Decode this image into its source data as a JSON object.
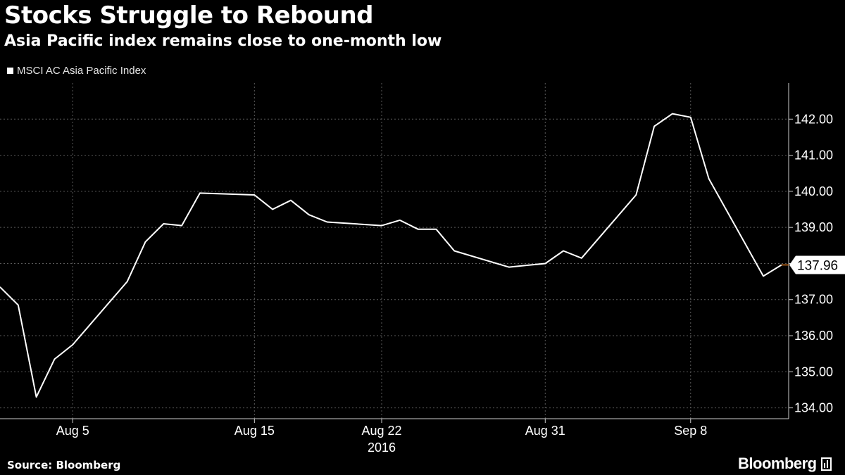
{
  "header": {
    "title": "Stocks Struggle to Rebound",
    "subtitle": "Asia Pacific index remains close to one-month low"
  },
  "footer": {
    "source": "Source: Bloomberg",
    "brand": "Bloomberg",
    "brand_icon": "bloomberg-terminal-icon"
  },
  "colors": {
    "background": "#000000",
    "line": "#ffffff",
    "grid": "#5a5a5a",
    "last_value_marker": "#e07a1f"
  },
  "chart_data": {
    "type": "line",
    "title": "Stocks Struggle to Rebound",
    "subtitle": "Asia Pacific index remains close to one-month low",
    "xlabel": "2016",
    "ylabel": "",
    "ylim": [
      133.7,
      143.0
    ],
    "yticks": [
      134.0,
      135.0,
      136.0,
      137.0,
      138.0,
      139.0,
      140.0,
      141.0,
      142.0
    ],
    "ytick_labels": [
      "134.00",
      "135.00",
      "136.00",
      "137.00",
      "",
      "139.00",
      "140.00",
      "141.00",
      "142.00"
    ],
    "xticks": [
      {
        "date": "2016-08-05",
        "label": "Aug 5"
      },
      {
        "date": "2016-08-15",
        "label": "Aug 15"
      },
      {
        "date": "2016-08-22",
        "label": "Aug 22"
      },
      {
        "date": "2016-08-31",
        "label": "Aug 31"
      },
      {
        "date": "2016-09-08",
        "label": "Sep 8"
      }
    ],
    "xlim": [
      "2016-08-01",
      "2016-09-12"
    ],
    "x_group_label": "2016",
    "grid": true,
    "legend_position": "top-left",
    "last_value": 137.96,
    "last_value_label": "137.96",
    "series": [
      {
        "name": "MSCI AC Asia Pacific Index",
        "color": "#ffffff",
        "points": [
          {
            "x": "2016-08-01",
            "y": 137.35
          },
          {
            "x": "2016-08-02",
            "y": 136.85
          },
          {
            "x": "2016-08-03",
            "y": 134.3
          },
          {
            "x": "2016-08-04",
            "y": 135.35
          },
          {
            "x": "2016-08-05",
            "y": 135.75
          },
          {
            "x": "2016-08-08",
            "y": 137.5
          },
          {
            "x": "2016-08-09",
            "y": 138.6
          },
          {
            "x": "2016-08-10",
            "y": 139.1
          },
          {
            "x": "2016-08-11",
            "y": 139.05
          },
          {
            "x": "2016-08-12",
            "y": 139.95
          },
          {
            "x": "2016-08-15",
            "y": 139.9
          },
          {
            "x": "2016-08-16",
            "y": 139.5
          },
          {
            "x": "2016-08-17",
            "y": 139.75
          },
          {
            "x": "2016-08-18",
            "y": 139.35
          },
          {
            "x": "2016-08-19",
            "y": 139.15
          },
          {
            "x": "2016-08-22",
            "y": 139.05
          },
          {
            "x": "2016-08-23",
            "y": 139.2
          },
          {
            "x": "2016-08-24",
            "y": 138.95
          },
          {
            "x": "2016-08-25",
            "y": 138.95
          },
          {
            "x": "2016-08-26",
            "y": 138.35
          },
          {
            "x": "2016-08-29",
            "y": 137.9
          },
          {
            "x": "2016-08-30",
            "y": 137.95
          },
          {
            "x": "2016-08-31",
            "y": 138.0
          },
          {
            "x": "2016-09-01",
            "y": 138.35
          },
          {
            "x": "2016-09-02",
            "y": 138.15
          },
          {
            "x": "2016-09-05",
            "y": 139.9
          },
          {
            "x": "2016-09-06",
            "y": 141.8
          },
          {
            "x": "2016-09-07",
            "y": 142.15
          },
          {
            "x": "2016-09-08",
            "y": 142.05
          },
          {
            "x": "2016-09-09",
            "y": 140.35
          },
          {
            "x": "2016-09-12",
            "y": 137.65
          },
          {
            "x": "2016-09-13",
            "y": 137.96
          }
        ]
      }
    ]
  }
}
